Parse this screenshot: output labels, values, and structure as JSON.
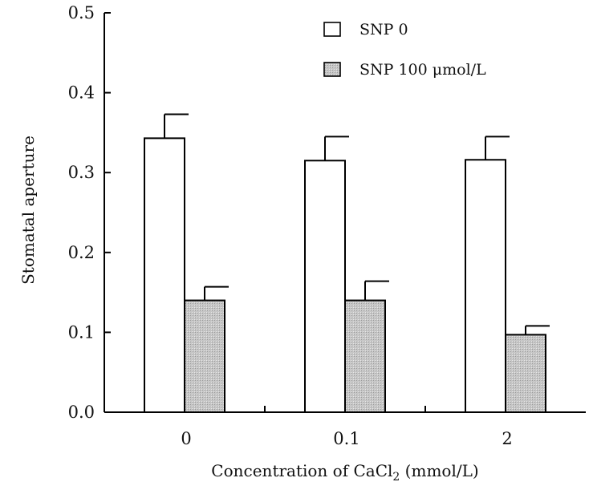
{
  "chart_data": {
    "type": "bar",
    "categories": [
      "0",
      "0.1",
      "2"
    ],
    "series": [
      {
        "name": "SNP 0",
        "values": [
          0.343,
          0.315,
          0.316
        ],
        "errors": [
          0.03,
          0.03,
          0.029
        ],
        "color": "#ffffff"
      },
      {
        "name": "SNP 100 μmol/L",
        "values": [
          0.14,
          0.14,
          0.097
        ],
        "errors": [
          0.017,
          0.024,
          0.011
        ],
        "color": "#c8c8c8"
      }
    ],
    "xlabel_main": "Concentration of CaCl",
    "xlabel_sub": "2",
    "xlabel_unit": " (mmol/L)",
    "ylabel": "Stomatal aperture",
    "ylim": [
      0,
      0.5
    ],
    "yticks": [
      "0.0",
      "0.1",
      "0.2",
      "0.3",
      "0.4",
      "0.5"
    ],
    "grid": false,
    "legend_position": "top-right"
  }
}
